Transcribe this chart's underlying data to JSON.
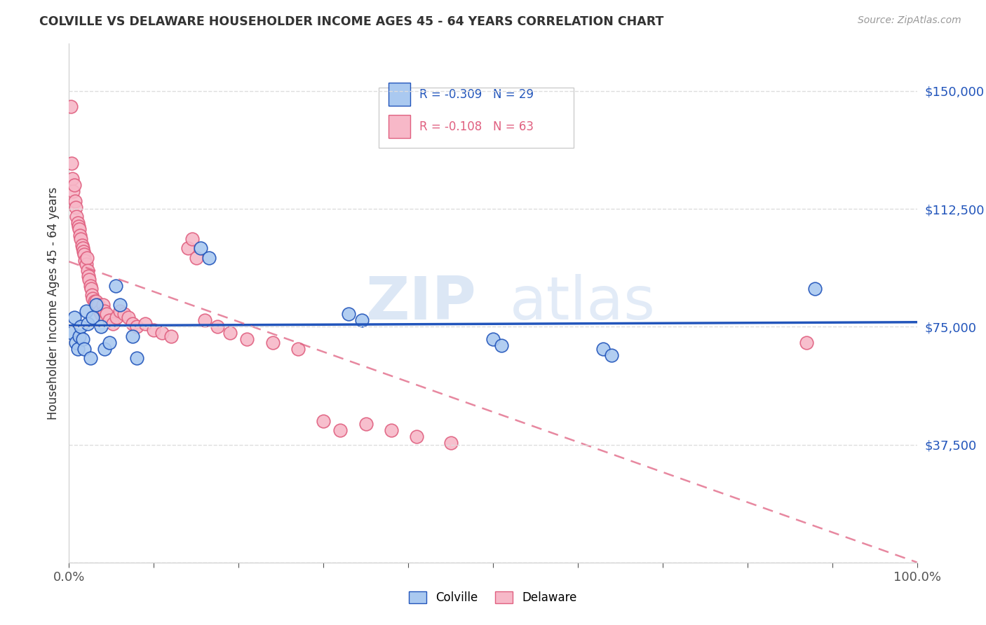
{
  "title": "COLVILLE VS DELAWARE HOUSEHOLDER INCOME AGES 45 - 64 YEARS CORRELATION CHART",
  "source": "Source: ZipAtlas.com",
  "ylabel": "Householder Income Ages 45 - 64 years",
  "yticks": [
    0,
    37500,
    75000,
    112500,
    150000
  ],
  "ytick_labels": [
    "",
    "$37,500",
    "$75,000",
    "$112,500",
    "$150,000"
  ],
  "xlim": [
    0,
    1.0
  ],
  "ylim": [
    0,
    165000
  ],
  "colville_R": -0.309,
  "colville_N": 29,
  "delaware_R": -0.108,
  "delaware_N": 63,
  "colville_color": "#aac9f0",
  "delaware_color": "#f7b8c8",
  "colville_line_color": "#2255bb",
  "delaware_line_color": "#e06080",
  "watermark_zip": "ZIP",
  "watermark_atlas": "atlas",
  "colville_x": [
    0.003,
    0.006,
    0.008,
    0.01,
    0.012,
    0.014,
    0.016,
    0.018,
    0.02,
    0.022,
    0.025,
    0.028,
    0.032,
    0.038,
    0.042,
    0.048,
    0.055,
    0.06,
    0.075,
    0.08,
    0.155,
    0.165,
    0.33,
    0.345,
    0.5,
    0.51,
    0.63,
    0.64,
    0.88
  ],
  "colville_y": [
    73000,
    78000,
    70000,
    68000,
    72000,
    75000,
    71000,
    68000,
    80000,
    76000,
    65000,
    78000,
    82000,
    75000,
    68000,
    70000,
    88000,
    82000,
    72000,
    65000,
    100000,
    97000,
    79000,
    77000,
    71000,
    69000,
    68000,
    66000,
    87000
  ],
  "delaware_x": [
    0.002,
    0.003,
    0.004,
    0.005,
    0.006,
    0.007,
    0.008,
    0.009,
    0.01,
    0.011,
    0.012,
    0.013,
    0.014,
    0.015,
    0.016,
    0.017,
    0.018,
    0.019,
    0.02,
    0.021,
    0.022,
    0.023,
    0.024,
    0.025,
    0.026,
    0.027,
    0.028,
    0.03,
    0.032,
    0.034,
    0.036,
    0.038,
    0.04,
    0.042,
    0.044,
    0.048,
    0.052,
    0.056,
    0.06,
    0.065,
    0.07,
    0.075,
    0.08,
    0.09,
    0.1,
    0.11,
    0.12,
    0.14,
    0.145,
    0.15,
    0.16,
    0.175,
    0.19,
    0.21,
    0.24,
    0.27,
    0.3,
    0.32,
    0.35,
    0.38,
    0.41,
    0.45,
    0.87
  ],
  "delaware_y": [
    145000,
    127000,
    122000,
    118000,
    120000,
    115000,
    113000,
    110000,
    108000,
    107000,
    106000,
    104000,
    103000,
    101000,
    100000,
    99000,
    98000,
    96000,
    95000,
    97000,
    93000,
    91000,
    90000,
    88000,
    87000,
    85000,
    84000,
    83000,
    83000,
    82000,
    80000,
    79000,
    82000,
    80000,
    79000,
    77000,
    76000,
    78000,
    80000,
    79000,
    78000,
    76000,
    75000,
    76000,
    74000,
    73000,
    72000,
    100000,
    103000,
    97000,
    77000,
    75000,
    73000,
    71000,
    70000,
    68000,
    45000,
    42000,
    44000,
    42000,
    40000,
    38000,
    70000
  ]
}
